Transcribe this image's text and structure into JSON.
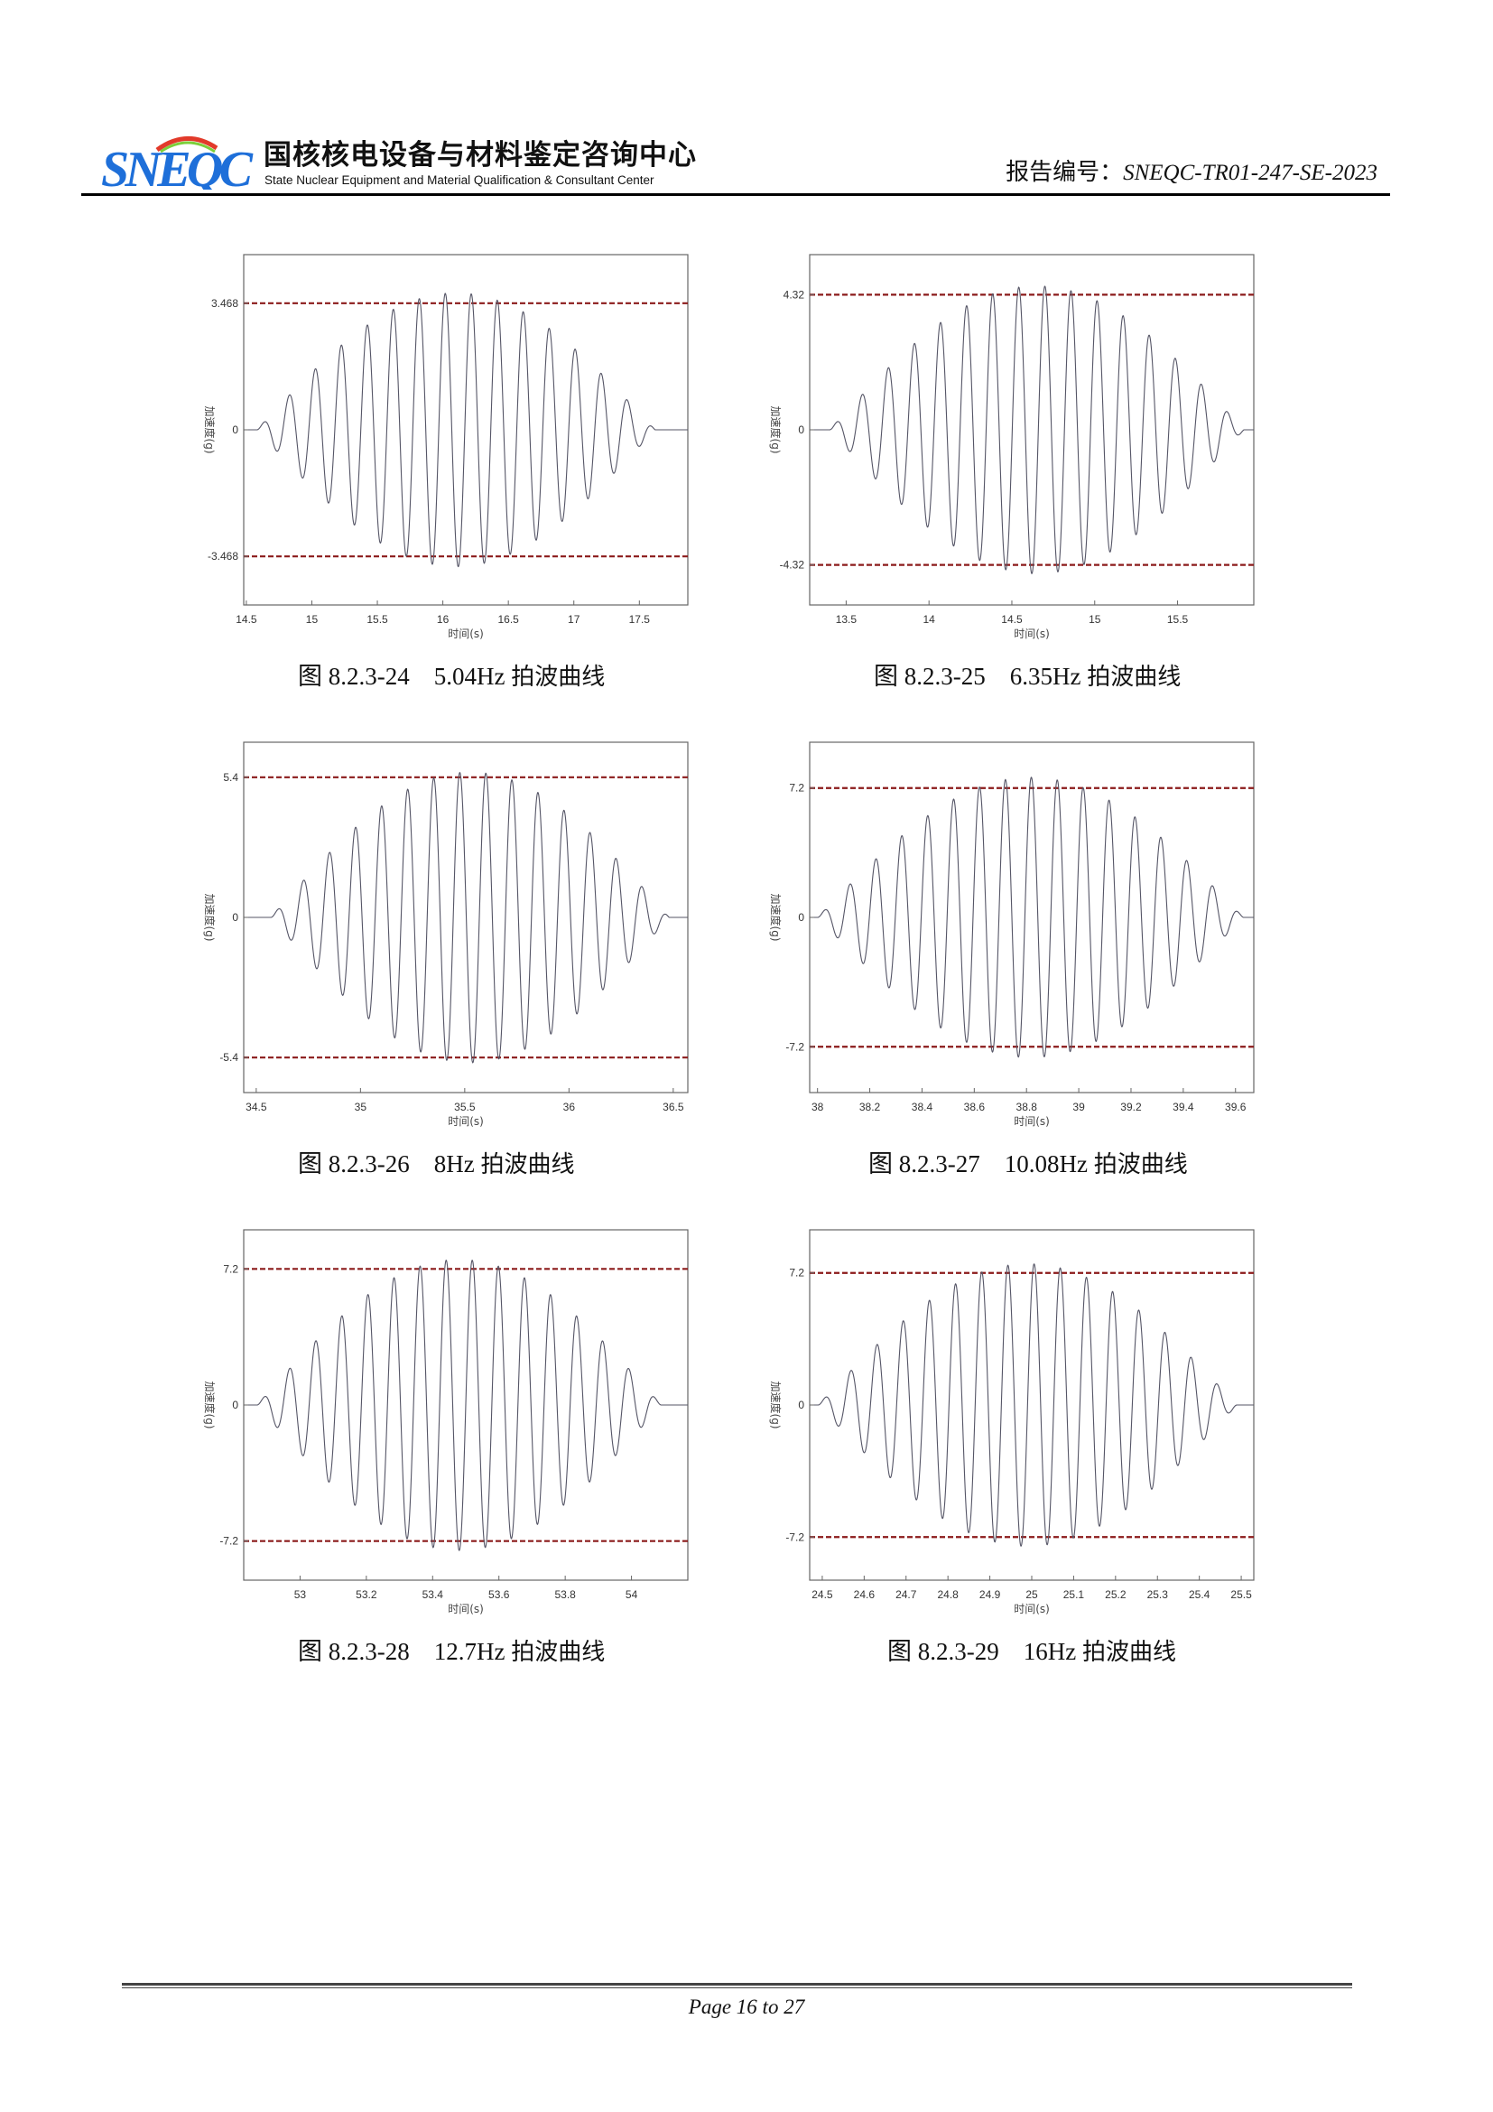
{
  "header": {
    "logo_text": "SNEQC",
    "org_name_cn": "国核核电设备与材料鉴定咨询中心",
    "org_name_en": "State Nuclear Equipment and Material Qualification & Consultant Center",
    "report_label": "报告编号：",
    "report_number": "SNEQC-TR01-247-SE-2023"
  },
  "footer": {
    "page_text": "Page 16 to 27"
  },
  "colors": {
    "waveform": "#555566",
    "limit_line": "#8b1a1a",
    "logo_blue": "#1e6fd9"
  },
  "chart_data": [
    {
      "type": "line",
      "title": "",
      "caption_no": "图 8.2.3-24",
      "caption_freq": "5.04Hz",
      "caption_text": "拍波曲线",
      "frequency_hz": 5.04,
      "xlabel": "时间(s)",
      "ylabel": "加速度(g)",
      "xlim": [
        14.48,
        17.87
      ],
      "ylim": [
        -4.8,
        4.8
      ],
      "xticks": [
        "14.5",
        "15",
        "15.5",
        "16",
        "16.5",
        "17",
        "17.5"
      ],
      "yticks": [
        "-3.468",
        "0",
        "3.468"
      ],
      "limit_lines": [
        3.468,
        -3.468
      ],
      "wave": {
        "start": 14.58,
        "end": 17.62,
        "peak": 3.75
      }
    },
    {
      "type": "line",
      "title": "",
      "caption_no": "图 8.2.3-25",
      "caption_freq": "6.35Hz",
      "caption_text": "拍波曲线",
      "frequency_hz": 6.35,
      "xlabel": "时间(s)",
      "ylabel": "加速度(g)",
      "xlim": [
        13.28,
        15.96
      ],
      "ylim": [
        -5.6,
        5.6
      ],
      "xticks": [
        "13.5",
        "14",
        "14.5",
        "15",
        "15.5"
      ],
      "yticks": [
        "-4.32",
        "0",
        "4.32"
      ],
      "limit_lines": [
        4.32,
        -4.32
      ],
      "wave": {
        "start": 13.4,
        "end": 15.9,
        "peak": 4.6
      }
    },
    {
      "type": "line",
      "title": "",
      "caption_no": "图 8.2.3-26",
      "caption_freq": "8Hz",
      "caption_text": "拍波曲线",
      "frequency_hz": 8,
      "xlabel": "时间(s)",
      "ylabel": "加速度(g)",
      "xlim": [
        34.44,
        36.57
      ],
      "ylim": [
        -6.75,
        6.75
      ],
      "xticks": [
        "34.5",
        "35",
        "35.5",
        "36",
        "36.5"
      ],
      "yticks": [
        "-5.4",
        "0",
        "5.4"
      ],
      "limit_lines": [
        5.4,
        -5.4
      ],
      "wave": {
        "start": 34.57,
        "end": 36.48,
        "peak": 5.6
      }
    },
    {
      "type": "line",
      "title": "",
      "caption_no": "图 8.2.3-27",
      "caption_freq": "10.08Hz",
      "caption_text": "拍波曲线",
      "frequency_hz": 10.08,
      "xlabel": "时间(s)",
      "ylabel": "加速度(g)",
      "xlim": [
        37.97,
        39.67
      ],
      "ylim": [
        -9.75,
        9.75
      ],
      "xticks": [
        "38",
        "38.2",
        "38.4",
        "38.6",
        "38.8",
        "39",
        "39.2",
        "39.4",
        "39.6"
      ],
      "yticks": [
        "-7.2",
        "0",
        "7.2"
      ],
      "limit_lines": [
        7.2,
        -7.2
      ],
      "wave": {
        "start": 38.0,
        "end": 39.63,
        "peak": 7.8
      }
    },
    {
      "type": "line",
      "title": "",
      "caption_no": "图 8.2.3-28",
      "caption_freq": "12.7Hz",
      "caption_text": "拍波曲线",
      "frequency_hz": 12.7,
      "xlabel": "时间(s)",
      "ylabel": "加速度(g)",
      "xlim": [
        52.83,
        54.17
      ],
      "ylim": [
        -9.27,
        9.27
      ],
      "xticks": [
        "53",
        "53.2",
        "53.4",
        "53.6",
        "53.8",
        "54"
      ],
      "yticks": [
        "-7.2",
        "0",
        "7.2"
      ],
      "limit_lines": [
        7.2,
        -7.2
      ],
      "wave": {
        "start": 52.87,
        "end": 54.09,
        "peak": 7.7
      }
    },
    {
      "type": "line",
      "title": "",
      "caption_no": "图 8.2.3-29",
      "caption_freq": "16Hz",
      "caption_text": "拍波曲线",
      "frequency_hz": 16,
      "xlabel": "时间(s)",
      "ylabel": "加速度(g)",
      "xlim": [
        24.47,
        25.53
      ],
      "ylim": [
        -9.55,
        9.55
      ],
      "xticks": [
        "24.5",
        "24.6",
        "24.7",
        "24.8",
        "24.9",
        "25",
        "25.1",
        "25.2",
        "25.3",
        "25.4",
        "25.5"
      ],
      "yticks": [
        "-7.2",
        "0",
        "7.2"
      ],
      "limit_lines": [
        7.2,
        -7.2
      ],
      "wave": {
        "start": 24.49,
        "end": 25.49,
        "peak": 7.7
      }
    }
  ]
}
